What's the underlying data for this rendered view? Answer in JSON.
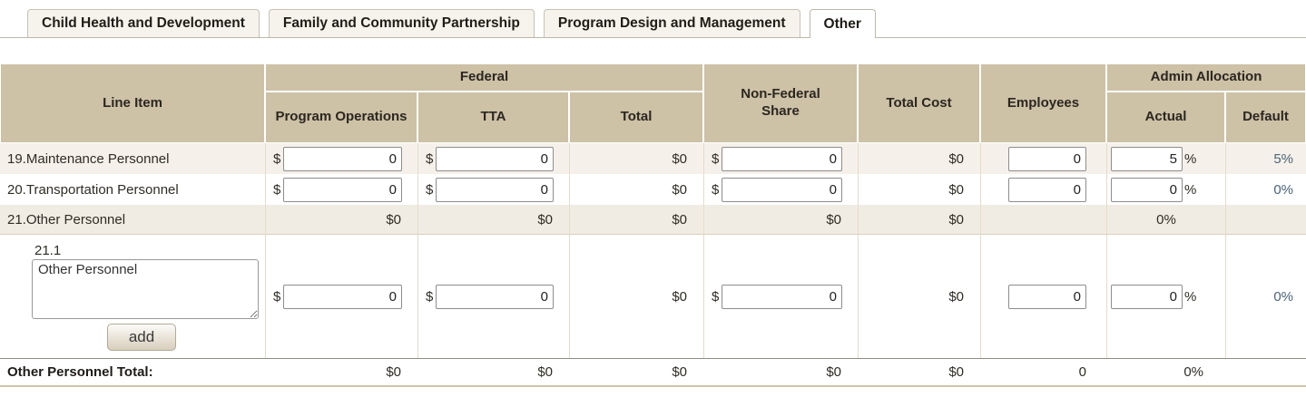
{
  "tabs": [
    {
      "label": "Child Health and Development",
      "active": false
    },
    {
      "label": "Family and Community Partnership",
      "active": false
    },
    {
      "label": "Program Design and Management",
      "active": false
    },
    {
      "label": "Other",
      "active": true
    }
  ],
  "table": {
    "headers": {
      "line_item": "Line Item",
      "federal": "Federal",
      "program_operations": "Program Operations",
      "tta": "TTA",
      "total": "Total",
      "non_federal_share": "Non-Federal Share",
      "total_cost": "Total Cost",
      "employees": "Employees",
      "admin_allocation": "Admin Allocation",
      "actual": "Actual",
      "default": "Default"
    },
    "symbols": {
      "currency": "$",
      "percent": "%"
    },
    "rows": {
      "r19": {
        "line_item": "19.Maintenance Personnel",
        "program_operations": "0",
        "tta": "0",
        "federal_total": "$0",
        "non_federal_share": "0",
        "total_cost": "$0",
        "employees": "0",
        "actual": "5",
        "default": "5%"
      },
      "r20": {
        "line_item": "20.Transportation Personnel",
        "program_operations": "0",
        "tta": "0",
        "federal_total": "$0",
        "non_federal_share": "0",
        "total_cost": "$0",
        "employees": "0",
        "actual": "0",
        "default": "0%"
      },
      "r21": {
        "line_item": "21.Other Personnel",
        "program_operations": "$0",
        "tta": "$0",
        "federal_total": "$0",
        "non_federal_share": "$0",
        "total_cost": "$0",
        "employees": "",
        "actual": "0%",
        "default": ""
      },
      "r21_1": {
        "number": "21.1",
        "description": "Other Personnel",
        "add_label": "add",
        "program_operations": "0",
        "tta": "0",
        "federal_total": "$0",
        "non_federal_share": "0",
        "total_cost": "$0",
        "employees": "0",
        "actual": "0",
        "default": "0%"
      }
    },
    "total": {
      "label": "Other Personnel Total:",
      "program_operations": "$0",
      "tta": "$0",
      "federal_total": "$0",
      "non_federal_share": "$0",
      "total_cost": "$0",
      "employees": "0",
      "actual": "0%",
      "default": ""
    }
  },
  "colors": {
    "header_bg": "#cdc1a6",
    "row_alt_bg": "#f5f1ea",
    "row_section_bg": "#f1ece3",
    "default_value_color": "#4a6377",
    "table_bottom_border": "#cfc3a9"
  }
}
